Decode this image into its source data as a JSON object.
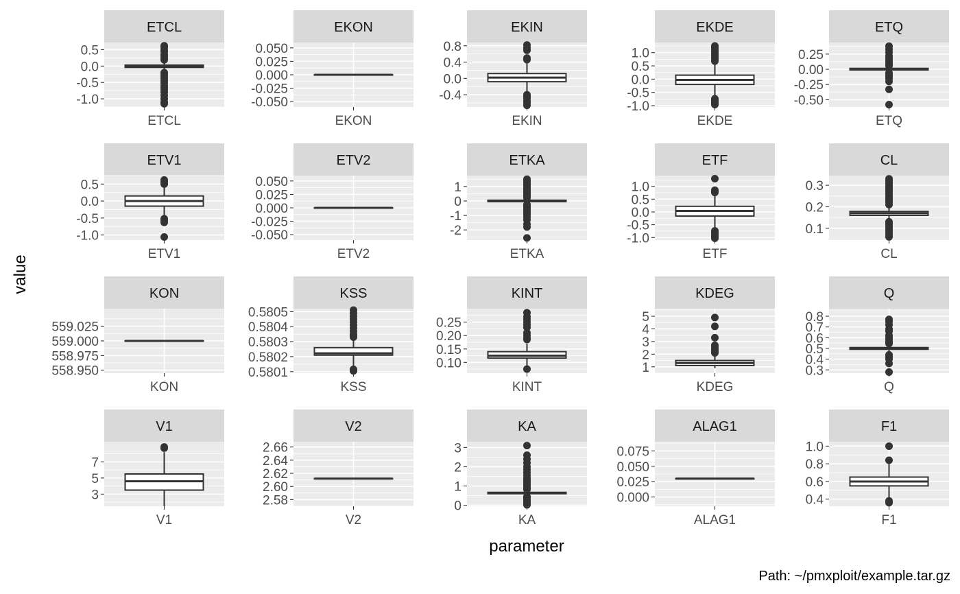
{
  "chart_data": {
    "type": "box",
    "xlabel": "parameter",
    "ylabel": "value",
    "caption": "Path: ~/pmxploit/example.tar.gz",
    "grid": true,
    "facets": [
      {
        "name": "ETCL",
        "yrange": [
          -1.25,
          0.72
        ],
        "yticks": [
          0.5,
          0.0,
          -0.5,
          -1.0
        ],
        "tick_labels": [
          "0.5",
          "0.0",
          "-0.5",
          "-1.0"
        ],
        "box": {
          "q1": -0.04,
          "median": -0.01,
          "q3": 0.03,
          "lower": -0.14,
          "upper": 0.14
        },
        "outliers": [
          0.62,
          0.58,
          0.5,
          0.44,
          0.35,
          0.3,
          0.24,
          0.19,
          -0.2,
          -0.26,
          -0.32,
          -0.38,
          -0.45,
          -0.52,
          -0.6,
          -0.66,
          -0.72,
          -0.8,
          -0.9,
          -1.0,
          -1.1,
          -1.15
        ]
      },
      {
        "name": "EKON",
        "yrange": [
          -0.06,
          0.06
        ],
        "yticks": [
          0.05,
          0.025,
          0.0,
          -0.025,
          -0.05
        ],
        "tick_labels": [
          "0.050",
          "0.025",
          "0.000",
          "-0.025",
          "-0.050"
        ],
        "box": {
          "q1": 0.0,
          "median": 0.0,
          "q3": 0.0,
          "lower": 0.0,
          "upper": 0.0
        },
        "outliers": []
      },
      {
        "name": "EKIN",
        "yrange": [
          -0.7,
          0.88
        ],
        "yticks": [
          0.8,
          0.4,
          0.0,
          -0.4
        ],
        "tick_labels": [
          "0.8",
          "0.4",
          "0.0",
          "-0.4"
        ],
        "box": {
          "q1": -0.08,
          "median": 0.02,
          "q3": 0.12,
          "lower": -0.35,
          "upper": 0.42
        },
        "outliers": [
          0.82,
          0.75,
          0.69,
          0.5,
          0.46,
          -0.4,
          -0.44,
          -0.48,
          -0.55,
          -0.6,
          -0.66
        ]
      },
      {
        "name": "EKDE",
        "yrange": [
          -1.05,
          1.38
        ],
        "yticks": [
          1.0,
          0.5,
          0.0,
          -0.5,
          -1.0
        ],
        "tick_labels": [
          "1.0",
          "0.5",
          "0.0",
          "-0.5",
          "-1.0"
        ],
        "box": {
          "q1": -0.2,
          "median": -0.03,
          "q3": 0.15,
          "lower": -0.68,
          "upper": 0.62
        },
        "outliers": [
          1.25,
          1.18,
          1.1,
          1.02,
          0.95,
          0.88,
          0.8,
          0.74,
          0.68,
          -0.74,
          -0.8,
          -0.85,
          -0.9,
          -0.96
        ]
      },
      {
        "name": "ETQ",
        "yrange": [
          -0.62,
          0.44
        ],
        "yticks": [
          0.25,
          0.0,
          -0.25,
          -0.5
        ],
        "tick_labels": [
          "0.25",
          "0.00",
          "-0.25",
          "-0.50"
        ],
        "box": {
          "q1": -0.01,
          "median": 0.0,
          "q3": 0.015,
          "lower": -0.04,
          "upper": 0.045
        },
        "outliers": [
          0.38,
          0.33,
          0.28,
          0.22,
          0.18,
          0.15,
          0.12,
          0.08,
          0.06,
          -0.06,
          -0.09,
          -0.12,
          -0.15,
          -0.2,
          -0.33,
          -0.58
        ]
      },
      {
        "name": "ETV1",
        "yrange": [
          -1.15,
          0.75
        ],
        "yticks": [
          0.5,
          0.0,
          -0.5,
          -1.0
        ],
        "tick_labels": [
          "0.5",
          "0.0",
          "-0.5",
          "-1.0"
        ],
        "box": {
          "q1": -0.15,
          "median": 0.0,
          "q3": 0.15,
          "lower": -0.45,
          "upper": 0.45
        },
        "outliers": [
          0.62,
          0.56,
          0.5,
          -0.52,
          -0.57,
          -0.63,
          -1.06
        ]
      },
      {
        "name": "ETV2",
        "yrange": [
          -0.06,
          0.06
        ],
        "yticks": [
          0.05,
          0.025,
          0.0,
          -0.025,
          -0.05
        ],
        "tick_labels": [
          "0.050",
          "0.025",
          "0.000",
          "-0.025",
          "-0.050"
        ],
        "box": {
          "q1": 0.0,
          "median": 0.0,
          "q3": 0.0,
          "lower": 0.0,
          "upper": 0.0
        },
        "outliers": []
      },
      {
        "name": "ETKA",
        "yrange": [
          -2.7,
          1.75
        ],
        "yticks": [
          1,
          0,
          -1,
          -2
        ],
        "tick_labels": [
          "1",
          "0",
          "-1",
          "-2"
        ],
        "box": {
          "q1": -0.05,
          "median": 0.0,
          "q3": 0.05,
          "lower": -0.18,
          "upper": 0.18
        },
        "outliers": [
          1.5,
          1.4,
          1.3,
          1.2,
          1.1,
          1.0,
          0.9,
          0.8,
          0.7,
          0.6,
          0.5,
          0.4,
          0.3,
          0.22,
          -0.25,
          -0.32,
          -0.4,
          -0.5,
          -0.6,
          -0.7,
          -0.82,
          -0.95,
          -1.1,
          -1.3,
          -1.6,
          -1.8,
          -2.55
        ]
      },
      {
        "name": "ETF",
        "yrange": [
          -1.1,
          1.42
        ],
        "yticks": [
          1.0,
          0.5,
          0.0,
          -0.5,
          -1.0
        ],
        "tick_labels": [
          "1.0",
          "0.5",
          "0.0",
          "-0.5",
          "-1.0"
        ],
        "box": {
          "q1": -0.16,
          "median": 0.04,
          "q3": 0.22,
          "lower": -0.7,
          "upper": 0.7
        },
        "outliers": [
          1.3,
          0.85,
          0.8,
          0.76,
          -0.74,
          -0.8,
          -0.86,
          -0.92,
          -0.98,
          -1.03
        ]
      },
      {
        "name": "CL",
        "yrange": [
          0.045,
          0.345
        ],
        "yticks": [
          0.3,
          0.2,
          0.1
        ],
        "tick_labels": [
          "0.3",
          "0.2",
          "0.1"
        ],
        "box": {
          "q1": 0.16,
          "median": 0.17,
          "q3": 0.178,
          "lower": 0.138,
          "upper": 0.2
        },
        "outliers": [
          0.33,
          0.32,
          0.31,
          0.3,
          0.29,
          0.28,
          0.27,
          0.26,
          0.25,
          0.24,
          0.23,
          0.22,
          0.21,
          0.13,
          0.12,
          0.11,
          0.1,
          0.09,
          0.08,
          0.07,
          0.06
        ]
      },
      {
        "name": "KON",
        "yrange": [
          558.945,
          559.055
        ],
        "yticks": [
          559.025,
          559.0,
          558.975,
          558.95
        ],
        "tick_labels": [
          "559.025",
          "559.000",
          "558.975",
          "558.950"
        ],
        "box": {
          "q1": 559.0,
          "median": 559.0,
          "q3": 559.0,
          "lower": 559.0,
          "upper": 559.0
        },
        "outliers": []
      },
      {
        "name": "KSS",
        "yrange": [
          0.58009,
          0.58052
        ],
        "yticks": [
          0.5805,
          0.5804,
          0.5803,
          0.5802,
          0.5801
        ],
        "tick_labels": [
          "0.5805",
          "0.5804",
          "0.5803",
          "0.5802",
          "0.5801"
        ],
        "box": {
          "q1": 0.58021,
          "median": 0.580222,
          "q3": 0.58026,
          "lower": 0.580135,
          "upper": 0.58032
        },
        "outliers": [
          0.58051,
          0.58049,
          0.58047,
          0.58045,
          0.58043,
          0.58041,
          0.58039,
          0.58037,
          0.58035,
          0.58034,
          0.58033,
          0.580115,
          0.580105
        ]
      },
      {
        "name": "KINT",
        "yrange": [
          0.06,
          0.3
        ],
        "yticks": [
          0.25,
          0.2,
          0.15,
          0.1
        ],
        "tick_labels": [
          "0.25",
          "0.20",
          "0.15",
          "0.10"
        ],
        "box": {
          "q1": 0.116,
          "median": 0.125,
          "q3": 0.14,
          "lower": 0.082,
          "upper": 0.17
        },
        "outliers": [
          0.285,
          0.27,
          0.26,
          0.25,
          0.24,
          0.23,
          0.21,
          0.2,
          0.19,
          0.185,
          0.075
        ]
      },
      {
        "name": "KDEG",
        "yrange": [
          0.5,
          5.6
        ],
        "yticks": [
          5,
          4,
          3,
          2,
          1
        ],
        "tick_labels": [
          "5",
          "4",
          "3",
          "2",
          "1"
        ],
        "box": {
          "q1": 1.1,
          "median": 1.3,
          "q3": 1.5,
          "lower": 0.9,
          "upper": 2.0
        },
        "outliers": [
          4.9,
          4.2,
          3.3,
          2.7,
          2.55,
          2.4,
          2.3,
          2.2,
          2.1
        ]
      },
      {
        "name": "Q",
        "yrange": [
          0.27,
          0.87
        ],
        "yticks": [
          0.8,
          0.7,
          0.6,
          0.5,
          0.4,
          0.3
        ],
        "tick_labels": [
          "0.8",
          "0.7",
          "0.6",
          "0.5",
          "0.4",
          "0.3"
        ],
        "box": {
          "q1": 0.492,
          "median": 0.5,
          "q3": 0.508,
          "lower": 0.47,
          "upper": 0.53
        },
        "outliers": [
          0.77,
          0.75,
          0.72,
          0.68,
          0.66,
          0.62,
          0.6,
          0.58,
          0.56,
          0.545,
          0.44,
          0.42,
          0.4,
          0.36,
          0.28
        ]
      },
      {
        "name": "V1",
        "yrange": [
          1.5,
          9.5
        ],
        "yticks": [
          7,
          5,
          3
        ],
        "tick_labels": [
          "7",
          "5",
          "3"
        ],
        "box": {
          "q1": 3.5,
          "median": 4.6,
          "q3": 5.5,
          "lower": 1.5,
          "upper": 8.2
        },
        "outliers": [
          8.7,
          8.85
        ]
      },
      {
        "name": "V2",
        "yrange": [
          2.57,
          2.668
        ],
        "yticks": [
          2.66,
          2.64,
          2.62,
          2.6,
          2.58
        ],
        "tick_labels": [
          "2.66",
          "2.64",
          "2.62",
          "2.60",
          "2.58"
        ],
        "box": {
          "q1": 2.612,
          "median": 2.612,
          "q3": 2.612,
          "lower": 2.612,
          "upper": 2.612
        },
        "outliers": []
      },
      {
        "name": "KA",
        "yrange": [
          -0.05,
          3.3
        ],
        "yticks": [
          3,
          2,
          1,
          0
        ],
        "tick_labels": [
          "3",
          "2",
          "1",
          "0"
        ],
        "box": {
          "q1": 0.6,
          "median": 0.63,
          "q3": 0.67,
          "lower": 0.52,
          "upper": 0.78
        },
        "outliers": [
          3.1,
          2.6,
          2.4,
          2.2,
          2.0,
          1.85,
          1.7,
          1.55,
          1.4,
          1.3,
          1.2,
          1.1,
          1.0,
          0.9,
          0.82,
          0.45,
          0.38,
          0.3,
          0.22,
          0.15,
          0.08,
          0.02
        ]
      },
      {
        "name": "ALAG1",
        "yrange": [
          -0.015,
          0.09
        ],
        "yticks": [
          0.075,
          0.05,
          0.025,
          0.0
        ],
        "tick_labels": [
          "0.075",
          "0.050",
          "0.025",
          "0.000"
        ],
        "box": {
          "q1": 0.03,
          "median": 0.03,
          "q3": 0.03,
          "lower": 0.03,
          "upper": 0.03
        },
        "outliers": []
      },
      {
        "name": "F1",
        "yrange": [
          0.32,
          1.05
        ],
        "yticks": [
          1.0,
          0.8,
          0.6,
          0.4
        ],
        "tick_labels": [
          "1.0",
          "0.8",
          "0.6",
          "0.4"
        ],
        "box": {
          "q1": 0.55,
          "median": 0.6,
          "q3": 0.65,
          "lower": 0.42,
          "upper": 0.8
        },
        "outliers": [
          1.0,
          0.84,
          0.38,
          0.36
        ]
      }
    ]
  }
}
